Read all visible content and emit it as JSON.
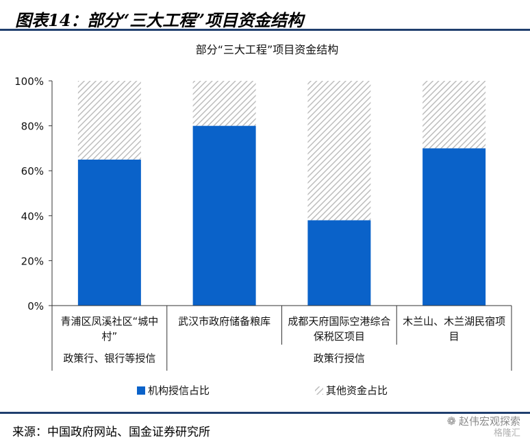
{
  "figure_title": "图表14：部分“三大工程”项目资金结构",
  "source": "来源：中国政府网站、国金证券研究所",
  "watermark": {
    "account": "赵伟宏观探索",
    "sub": "格隆汇",
    "icon": "wechat-icon"
  },
  "colors": {
    "institution": "#0a62c9",
    "other": "#c9c9c9",
    "rule": "#1f3f6e"
  },
  "chart_data": {
    "type": "bar",
    "stacked": true,
    "title": "部分“三大工程”项目资金结构",
    "ylim": [
      0,
      100
    ],
    "yticks": [
      "0%",
      "20%",
      "40%",
      "60%",
      "80%",
      "100%"
    ],
    "categories": [
      [
        "青浦区凤溪社区“城中",
        "村”"
      ],
      [
        "武汉市政府储备粮库"
      ],
      [
        "成都天府国际空港综合",
        "保税区项目"
      ],
      [
        "木兰山、木兰湖民宿项",
        "目"
      ]
    ],
    "groups": [
      {
        "label": "政策行、银行等授信",
        "span": [
          0,
          0
        ]
      },
      {
        "label": "政策行授信",
        "span": [
          1,
          3
        ]
      }
    ],
    "series": [
      {
        "name": "机构授信占比",
        "values": [
          65,
          80,
          38,
          70
        ],
        "pattern": "solid"
      },
      {
        "name": "其他资金占比",
        "values": [
          35,
          20,
          62,
          30
        ],
        "pattern": "hatch"
      }
    ],
    "legend_position": "bottom",
    "grid": false
  }
}
